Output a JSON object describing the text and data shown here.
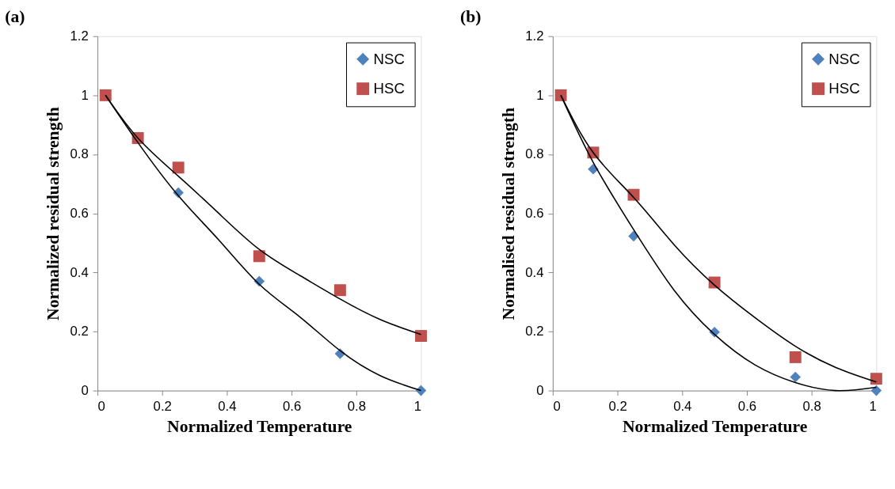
{
  "chart_data": [
    {
      "type": "scatter",
      "title": "(a)",
      "xlabel": "Normalized Temperature",
      "ylabel": "Normalized residual strength",
      "xlim": [
        0,
        1
      ],
      "xticks": [
        0,
        0.2,
        0.4,
        0.6,
        0.8,
        1
      ],
      "ylim": [
        0,
        1.2
      ],
      "yticks": [
        0,
        0.2,
        0.4,
        0.6,
        0.8,
        1,
        1.2
      ],
      "grid": false,
      "legend": "top right",
      "series": [
        {
          "name": "NSC",
          "color": "#4f81bd",
          "marker": "diamond",
          "x": [
            0.25,
            0.5,
            0.75,
            1
          ],
          "values": [
            0.67,
            0.37,
            0.125,
            0
          ]
        },
        {
          "name": "HSC",
          "color": "#c0504d",
          "marker": "square",
          "x": [
            0.025,
            0.125,
            0.25,
            0.5,
            0.75,
            1
          ],
          "values": [
            1,
            0.855,
            0.755,
            0.455,
            0.34,
            0.185
          ]
        },
        {
          "type": "line",
          "color": "#000000",
          "marker": "none",
          "x": [
            0.025,
            0.125,
            0.25,
            0.375,
            0.5,
            0.625,
            0.75,
            0.875,
            1
          ],
          "values": [
            1,
            0.84,
            0.66,
            0.51,
            0.36,
            0.25,
            0.135,
            0.05,
            0
          ]
        },
        {
          "type": "line",
          "color": "#000000",
          "marker": "none",
          "x": [
            0.025,
            0.125,
            0.25,
            0.375,
            0.5,
            0.625,
            0.75,
            0.875,
            1
          ],
          "values": [
            1,
            0.855,
            0.726,
            0.6,
            0.478,
            0.39,
            0.31,
            0.24,
            0.19
          ]
        }
      ]
    },
    {
      "type": "scatter",
      "title": "(b)",
      "xlabel": "Normalized Temperature",
      "ylabel": "Normalised residual strength",
      "xlim": [
        0,
        1
      ],
      "xticks": [
        0,
        0.2,
        0.4,
        0.6,
        0.8,
        1
      ],
      "ylim": [
        0,
        1.2
      ],
      "yticks": [
        0,
        0.2,
        0.4,
        0.6,
        0.8,
        1,
        1.2
      ],
      "grid": false,
      "legend": "top right",
      "series": [
        {
          "name": "NSC",
          "color": "#4f81bd",
          "marker": "diamond",
          "x": [
            0.125,
            0.25,
            0.5,
            0.75,
            1
          ],
          "values": [
            0.75,
            0.523,
            0.198,
            0.046,
            0
          ]
        },
        {
          "name": "HSC",
          "color": "#c0504d",
          "marker": "square",
          "x": [
            0.025,
            0.125,
            0.25,
            0.5,
            0.75,
            1
          ],
          "values": [
            1,
            0.806,
            0.663,
            0.366,
            0.113,
            0.04
          ]
        },
        {
          "type": "line",
          "color": "#000000",
          "marker": "none",
          "x": [
            0.025,
            0.125,
            0.25,
            0.375,
            0.5,
            0.625,
            0.75,
            0.875,
            1
          ],
          "values": [
            1,
            0.773,
            0.545,
            0.34,
            0.19,
            0.087,
            0.027,
            0,
            0.011
          ]
        },
        {
          "type": "line",
          "color": "#000000",
          "marker": "none",
          "x": [
            0.025,
            0.125,
            0.25,
            0.375,
            0.5,
            0.625,
            0.75,
            0.875,
            1
          ],
          "values": [
            1,
            0.806,
            0.654,
            0.494,
            0.357,
            0.247,
            0.15,
            0.078,
            0.029
          ]
        }
      ]
    }
  ]
}
